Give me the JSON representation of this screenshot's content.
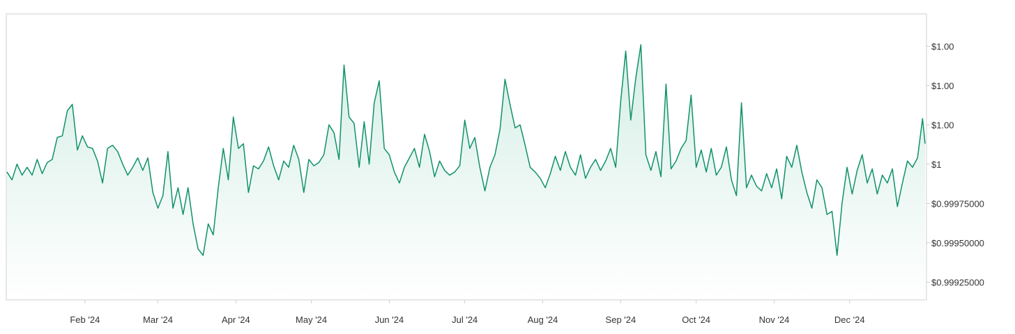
{
  "colors": {
    "line": "#10916b",
    "fill_top": "#d5eee6",
    "fill_bottom": "#ffffff",
    "frame": "#cfcfcf",
    "text": "#333333"
  },
  "chart_data": {
    "type": "area",
    "title": "",
    "xlabel": "",
    "ylabel": "",
    "x_tick_labels": [
      "Feb '24",
      "Mar '24",
      "Apr '24",
      "May '24",
      "Jun '24",
      "Jul '24",
      "Aug '24",
      "Sep '24",
      "Oct '24",
      "Nov '24",
      "Dec '24"
    ],
    "x_tick_dates": [
      "2024-02-01",
      "2024-03-01",
      "2024-04-01",
      "2024-05-01",
      "2024-06-01",
      "2024-07-01",
      "2024-08-01",
      "2024-09-01",
      "2024-10-01",
      "2024-11-01",
      "2024-12-01"
    ],
    "y_ticks": [
      0.99925,
      0.9995,
      0.99975,
      1.0,
      1.00025,
      1.0005,
      1.00075
    ],
    "y_tick_labels": [
      "$0.99925000",
      "$0.99950000",
      "$0.99975000",
      "$1",
      "$1.00",
      "$1.00",
      "$1.00"
    ],
    "ylim": [
      0.99915,
      1.00092
    ],
    "xlim": [
      "2024-01-01",
      "2024-12-31"
    ],
    "grid": false,
    "legend": "none",
    "series": [
      {
        "values": [
          [
            "2024-01-01",
            0.99995
          ],
          [
            "2024-01-03",
            0.9999
          ],
          [
            "2024-01-05",
            1.0
          ],
          [
            "2024-01-07",
            0.99993
          ],
          [
            "2024-01-09",
            0.99998
          ],
          [
            "2024-01-11",
            0.99993
          ],
          [
            "2024-01-13",
            1.00003
          ],
          [
            "2024-01-15",
            0.99994
          ],
          [
            "2024-01-17",
            1.00001
          ],
          [
            "2024-01-19",
            1.00003
          ],
          [
            "2024-01-21",
            1.00017
          ],
          [
            "2024-01-23",
            1.00018
          ],
          [
            "2024-01-25",
            1.00034
          ],
          [
            "2024-01-27",
            1.00038
          ],
          [
            "2024-01-29",
            1.00009
          ],
          [
            "2024-01-31",
            1.00018
          ],
          [
            "2024-02-02",
            1.00011
          ],
          [
            "2024-02-04",
            1.0001
          ],
          [
            "2024-02-06",
            1.00002
          ],
          [
            "2024-02-08",
            0.99988
          ],
          [
            "2024-02-10",
            1.0001
          ],
          [
            "2024-02-12",
            1.00012
          ],
          [
            "2024-02-14",
            1.00008
          ],
          [
            "2024-02-16",
            1.0
          ],
          [
            "2024-02-18",
            0.99993
          ],
          [
            "2024-02-20",
            0.99998
          ],
          [
            "2024-02-22",
            1.00004
          ],
          [
            "2024-02-24",
            0.99996
          ],
          [
            "2024-02-26",
            1.00004
          ],
          [
            "2024-02-28",
            0.99982
          ],
          [
            "2024-03-01",
            0.99972
          ],
          [
            "2024-03-03",
            0.9998
          ],
          [
            "2024-03-05",
            1.00008
          ],
          [
            "2024-03-07",
            0.99972
          ],
          [
            "2024-03-09",
            0.99985
          ],
          [
            "2024-03-11",
            0.99968
          ],
          [
            "2024-03-13",
            0.99985
          ],
          [
            "2024-03-15",
            0.99962
          ],
          [
            "2024-03-17",
            0.99946
          ],
          [
            "2024-03-19",
            0.99942
          ],
          [
            "2024-03-21",
            0.99962
          ],
          [
            "2024-03-23",
            0.99955
          ],
          [
            "2024-03-25",
            0.99985
          ],
          [
            "2024-03-27",
            1.0001
          ],
          [
            "2024-03-29",
            0.9999
          ],
          [
            "2024-03-31",
            1.0003
          ],
          [
            "2024-04-02",
            1.0001
          ],
          [
            "2024-04-04",
            1.00013
          ],
          [
            "2024-04-06",
            0.99982
          ],
          [
            "2024-04-08",
            0.99999
          ],
          [
            "2024-04-10",
            0.99997
          ],
          [
            "2024-04-12",
            1.00002
          ],
          [
            "2024-04-14",
            1.00011
          ],
          [
            "2024-04-16",
            0.99999
          ],
          [
            "2024-04-18",
            0.9999
          ],
          [
            "2024-04-20",
            1.00002
          ],
          [
            "2024-04-22",
            0.99998
          ],
          [
            "2024-04-24",
            1.00012
          ],
          [
            "2024-04-26",
            1.00003
          ],
          [
            "2024-04-28",
            0.99982
          ],
          [
            "2024-04-30",
            1.00003
          ],
          [
            "2024-05-02",
            0.99999
          ],
          [
            "2024-05-04",
            1.00001
          ],
          [
            "2024-05-06",
            1.00006
          ],
          [
            "2024-05-08",
            1.00025
          ],
          [
            "2024-05-10",
            1.0002
          ],
          [
            "2024-05-12",
            1.00003
          ],
          [
            "2024-05-14",
            1.00063
          ],
          [
            "2024-05-16",
            1.0003
          ],
          [
            "2024-05-18",
            1.00026
          ],
          [
            "2024-05-20",
            0.99998
          ],
          [
            "2024-05-22",
            1.00027
          ],
          [
            "2024-05-24",
            1.0
          ],
          [
            "2024-05-26",
            1.00039
          ],
          [
            "2024-05-28",
            1.00053
          ],
          [
            "2024-05-30",
            1.0001
          ],
          [
            "2024-06-01",
            1.00006
          ],
          [
            "2024-06-03",
            0.99995
          ],
          [
            "2024-06-05",
            0.99988
          ],
          [
            "2024-06-07",
            0.99998
          ],
          [
            "2024-06-09",
            1.00004
          ],
          [
            "2024-06-11",
            1.0001
          ],
          [
            "2024-06-13",
            0.99998
          ],
          [
            "2024-06-15",
            1.00019
          ],
          [
            "2024-06-17",
            1.00008
          ],
          [
            "2024-06-19",
            0.99992
          ],
          [
            "2024-06-21",
            1.00002
          ],
          [
            "2024-06-23",
            0.99996
          ],
          [
            "2024-06-25",
            0.99993
          ],
          [
            "2024-06-27",
            0.99995
          ],
          [
            "2024-06-29",
            0.99999
          ],
          [
            "2024-07-01",
            1.00028
          ],
          [
            "2024-07-03",
            1.0001
          ],
          [
            "2024-07-05",
            1.00017
          ],
          [
            "2024-07-07",
            0.99998
          ],
          [
            "2024-07-09",
            0.99983
          ],
          [
            "2024-07-11",
            0.99998
          ],
          [
            "2024-07-13",
            1.00006
          ],
          [
            "2024-07-15",
            1.00022
          ],
          [
            "2024-07-17",
            1.00054
          ],
          [
            "2024-07-19",
            1.00038
          ],
          [
            "2024-07-21",
            1.00023
          ],
          [
            "2024-07-23",
            1.00025
          ],
          [
            "2024-07-25",
            1.00012
          ],
          [
            "2024-07-27",
            0.99998
          ],
          [
            "2024-07-29",
            0.99995
          ],
          [
            "2024-07-31",
            0.99991
          ],
          [
            "2024-08-02",
            0.99985
          ],
          [
            "2024-08-04",
            0.99994
          ],
          [
            "2024-08-06",
            1.00005
          ],
          [
            "2024-08-08",
            0.99996
          ],
          [
            "2024-08-10",
            1.00008
          ],
          [
            "2024-08-12",
            0.99998
          ],
          [
            "2024-08-14",
            0.99993
          ],
          [
            "2024-08-16",
            1.00006
          ],
          [
            "2024-08-18",
            0.99991
          ],
          [
            "2024-08-20",
            0.99998
          ],
          [
            "2024-08-22",
            1.00003
          ],
          [
            "2024-08-24",
            0.99996
          ],
          [
            "2024-08-26",
            1.00002
          ],
          [
            "2024-08-28",
            1.0001
          ],
          [
            "2024-08-30",
            0.99998
          ],
          [
            "2024-09-01",
            1.0004
          ],
          [
            "2024-09-03",
            1.00072
          ],
          [
            "2024-09-05",
            1.00028
          ],
          [
            "2024-09-07",
            1.00055
          ],
          [
            "2024-09-09",
            1.00076
          ],
          [
            "2024-09-11",
            1.00006
          ],
          [
            "2024-09-13",
            0.99996
          ],
          [
            "2024-09-15",
            1.00008
          ],
          [
            "2024-09-17",
            0.99992
          ],
          [
            "2024-09-19",
            1.00051
          ],
          [
            "2024-09-21",
            0.99997
          ],
          [
            "2024-09-23",
            1.00002
          ],
          [
            "2024-09-25",
            1.0001
          ],
          [
            "2024-09-27",
            1.00015
          ],
          [
            "2024-09-29",
            1.00044
          ],
          [
            "2024-10-01",
            0.99998
          ],
          [
            "2024-10-03",
            1.00009
          ],
          [
            "2024-10-05",
            0.99995
          ],
          [
            "2024-10-07",
            1.0001
          ],
          [
            "2024-10-09",
            0.99993
          ],
          [
            "2024-10-11",
            0.99998
          ],
          [
            "2024-10-13",
            1.00011
          ],
          [
            "2024-10-15",
            0.9999
          ],
          [
            "2024-10-17",
            0.9998
          ],
          [
            "2024-10-19",
            1.00039
          ],
          [
            "2024-10-21",
            0.99985
          ],
          [
            "2024-10-23",
            0.99993
          ],
          [
            "2024-10-25",
            0.99986
          ],
          [
            "2024-10-27",
            0.99983
          ],
          [
            "2024-10-29",
            0.99994
          ],
          [
            "2024-10-31",
            0.99985
          ],
          [
            "2024-11-02",
            0.99997
          ],
          [
            "2024-11-04",
            0.99978
          ],
          [
            "2024-11-06",
            1.00005
          ],
          [
            "2024-11-08",
            0.99998
          ],
          [
            "2024-11-10",
            1.00012
          ],
          [
            "2024-11-12",
            0.99995
          ],
          [
            "2024-11-14",
            0.99982
          ],
          [
            "2024-11-16",
            0.99972
          ],
          [
            "2024-11-18",
            0.9999
          ],
          [
            "2024-11-20",
            0.99985
          ],
          [
            "2024-11-22",
            0.99968
          ],
          [
            "2024-11-24",
            0.9997
          ],
          [
            "2024-11-26",
            0.99942
          ],
          [
            "2024-11-28",
            0.99975
          ],
          [
            "2024-11-30",
            0.99998
          ],
          [
            "2024-12-02",
            0.99981
          ],
          [
            "2024-12-04",
            0.99996
          ],
          [
            "2024-12-06",
            1.00006
          ],
          [
            "2024-12-08",
            0.99988
          ],
          [
            "2024-12-10",
            0.99997
          ],
          [
            "2024-12-12",
            0.99981
          ],
          [
            "2024-12-14",
            0.99993
          ],
          [
            "2024-12-16",
            0.99988
          ],
          [
            "2024-12-18",
            0.99997
          ],
          [
            "2024-12-20",
            0.99973
          ],
          [
            "2024-12-22",
            0.99988
          ],
          [
            "2024-12-24",
            1.00002
          ],
          [
            "2024-12-26",
            0.99998
          ],
          [
            "2024-12-28",
            1.00004
          ],
          [
            "2024-12-30",
            1.00029
          ],
          [
            "2024-12-31",
            1.00013
          ]
        ]
      }
    ]
  }
}
